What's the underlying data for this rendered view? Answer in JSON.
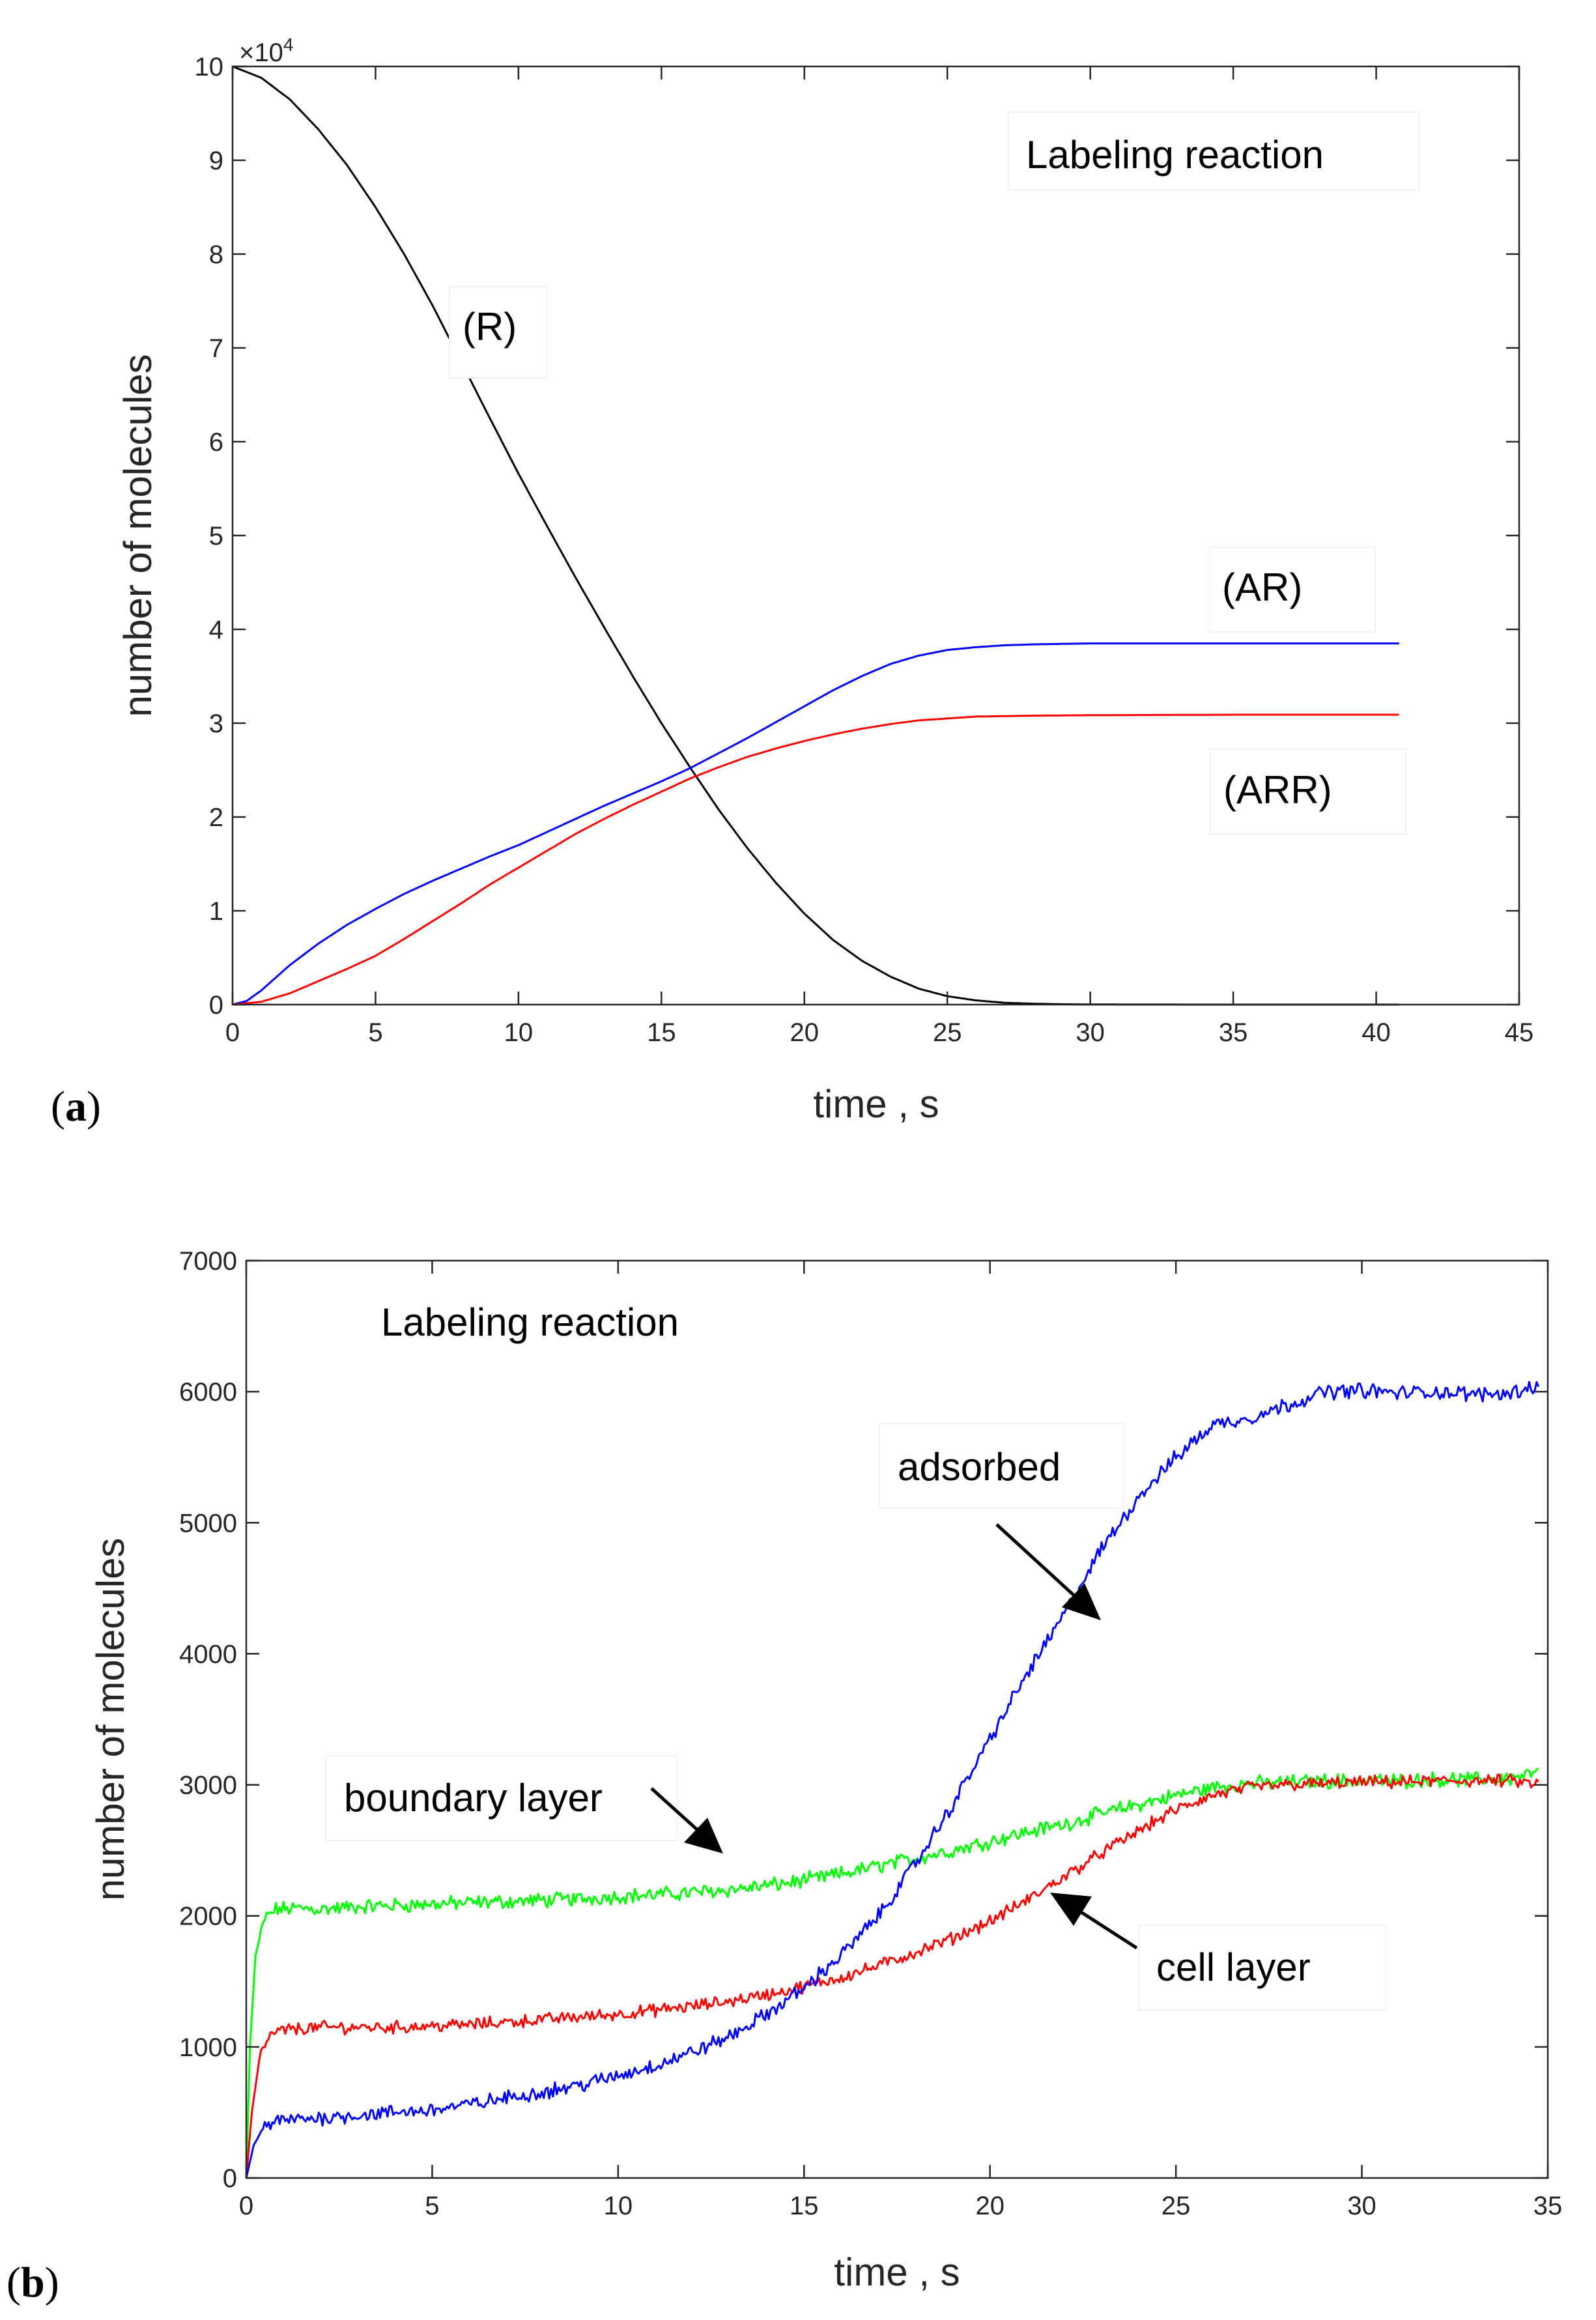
{
  "chart_data": [
    {
      "type": "line",
      "panel_label_open": "(",
      "panel_label_letter": "a",
      "panel_label_close": ")",
      "title": "Labeling reaction",
      "xlabel": "time , s",
      "ylabel": "number of molecules",
      "xlim": [
        0,
        45
      ],
      "ylim": [
        0,
        100000
      ],
      "xticks": [
        0,
        5,
        10,
        15,
        20,
        25,
        30,
        35,
        40,
        45
      ],
      "xtick_labels": [
        "0",
        "5",
        "10",
        "15",
        "20",
        "25",
        "30",
        "35",
        "40",
        "45"
      ],
      "yticks": [
        0,
        10000,
        20000,
        30000,
        40000,
        50000,
        60000,
        70000,
        80000,
        90000,
        100000
      ],
      "ytick_labels": [
        "0",
        "1",
        "2",
        "3",
        "4",
        "5",
        "6",
        "7",
        "8",
        "9",
        "10"
      ],
      "exponent_base": "×10",
      "exponent_power": "4",
      "grid": false,
      "series": [
        {
          "name": "(R)",
          "color": "#000000",
          "x": [
            0,
            1,
            2,
            3,
            4,
            5,
            6,
            7,
            8,
            9,
            10,
            11,
            12,
            13,
            14,
            15,
            16,
            17,
            18,
            19,
            20,
            21,
            22,
            23,
            24,
            25,
            26,
            27,
            28,
            29,
            30,
            32,
            34,
            36,
            38,
            40.8
          ],
          "y": [
            100000,
            98800,
            96500,
            93300,
            89500,
            85000,
            80000,
            74500,
            68500,
            62500,
            56600,
            51000,
            45500,
            40200,
            35000,
            30000,
            25300,
            20800,
            16700,
            13000,
            9700,
            6900,
            4700,
            3000,
            1700,
            900,
            450,
            200,
            100,
            40,
            15,
            5,
            2,
            1,
            0,
            0
          ]
        },
        {
          "name": "(AR)",
          "color": "#0000ff",
          "x": [
            0,
            0.5,
            1,
            2,
            3,
            4,
            5,
            6,
            7,
            8,
            9,
            10,
            11,
            12,
            13,
            14,
            15,
            16,
            17,
            18,
            19,
            20,
            21,
            22,
            23,
            24,
            25,
            26,
            27,
            28,
            29,
            30,
            32,
            35,
            38,
            40.8
          ],
          "y": [
            0,
            400,
            1500,
            4200,
            6500,
            8500,
            10200,
            11800,
            13200,
            14500,
            15800,
            17000,
            18400,
            19800,
            21200,
            22500,
            23800,
            25200,
            26800,
            28400,
            30100,
            31800,
            33500,
            35000,
            36300,
            37200,
            37800,
            38100,
            38300,
            38400,
            38450,
            38500,
            38500,
            38500,
            38500,
            38500
          ]
        },
        {
          "name": "(ARR)",
          "color": "#ff0000",
          "x": [
            0,
            1,
            2,
            3,
            4,
            5,
            6,
            7,
            8,
            9,
            10,
            11,
            12,
            13,
            14,
            15,
            16,
            17,
            18,
            19,
            20,
            21,
            22,
            23,
            24,
            25,
            26,
            28,
            30,
            35,
            40.8
          ],
          "y": [
            0,
            300,
            1200,
            2500,
            3800,
            5200,
            7000,
            8900,
            10800,
            12800,
            14600,
            16400,
            18200,
            19800,
            21300,
            22700,
            24100,
            25300,
            26400,
            27300,
            28100,
            28800,
            29400,
            29900,
            30300,
            30500,
            30700,
            30800,
            30850,
            30900,
            30900
          ]
        }
      ],
      "annotations": [
        "(R)",
        "(AR)",
        "(ARR)"
      ]
    },
    {
      "type": "line",
      "panel_label_open": "(",
      "panel_label_letter": "b",
      "panel_label_close": ")",
      "title": "Labeling reaction",
      "xlabel": "time , s",
      "ylabel": "number of molecules",
      "xlim": [
        0,
        35
      ],
      "ylim": [
        0,
        7000
      ],
      "xticks": [
        0,
        5,
        10,
        15,
        20,
        25,
        30,
        35
      ],
      "xtick_labels": [
        "0",
        "5",
        "10",
        "15",
        "20",
        "25",
        "30",
        "35"
      ],
      "yticks": [
        0,
        1000,
        2000,
        3000,
        4000,
        5000,
        6000,
        7000
      ],
      "ytick_labels": [
        "0",
        "1000",
        "2000",
        "3000",
        "4000",
        "5000",
        "6000",
        "7000"
      ],
      "grid": false,
      "series": [
        {
          "name": "boundary layer",
          "color": "#00ff00",
          "x": [
            0,
            0.1,
            0.25,
            0.5,
            0.8,
            1.5,
            2,
            3,
            4,
            5,
            6,
            7,
            8,
            9,
            10,
            11,
            12,
            13,
            14,
            15,
            16,
            17,
            18,
            19,
            20,
            21,
            22,
            23,
            24,
            25,
            26,
            27,
            28,
            29,
            30,
            31,
            32,
            33,
            34,
            34.8
          ],
          "y": [
            0,
            1000,
            1700,
            1980,
            2050,
            2060,
            2050,
            2070,
            2080,
            2090,
            2100,
            2110,
            2120,
            2130,
            2150,
            2160,
            2180,
            2200,
            2230,
            2270,
            2320,
            2380,
            2440,
            2500,
            2570,
            2640,
            2700,
            2780,
            2850,
            2920,
            2980,
            3010,
            3020,
            3030,
            3030,
            3030,
            3040,
            3040,
            3050,
            3100
          ]
        },
        {
          "name": "cell layer",
          "color": "#ff0000",
          "x": [
            0,
            0.15,
            0.35,
            0.6,
            1,
            2,
            3,
            4,
            5,
            6,
            7,
            8,
            9,
            10,
            11,
            12,
            13,
            14,
            15,
            16,
            17,
            18,
            19,
            20,
            21,
            22,
            23,
            24,
            25,
            26,
            27,
            28,
            29,
            30,
            31,
            32,
            33,
            34,
            34.8
          ],
          "y": [
            0,
            500,
            900,
            1080,
            1130,
            1150,
            1150,
            1150,
            1160,
            1170,
            1190,
            1210,
            1230,
            1250,
            1280,
            1310,
            1350,
            1400,
            1460,
            1530,
            1620,
            1720,
            1830,
            1960,
            2120,
            2300,
            2480,
            2650,
            2810,
            2920,
            2980,
            3000,
            3010,
            3020,
            3020,
            3030,
            3030,
            3030,
            3000
          ]
        },
        {
          "name": "adsorbed",
          "color": "#0000ff",
          "x": [
            0,
            0.2,
            0.5,
            1,
            2,
            3,
            4,
            5,
            6,
            7,
            8,
            9,
            10,
            11,
            12,
            13,
            14,
            15,
            16,
            17,
            18,
            19,
            20,
            21,
            22,
            23,
            24,
            25,
            26,
            27,
            28,
            29,
            30,
            31,
            32,
            33,
            34,
            34.8
          ],
          "y": [
            0,
            250,
            400,
            440,
            460,
            480,
            500,
            520,
            560,
            610,
            660,
            710,
            780,
            860,
            960,
            1080,
            1250,
            1450,
            1700,
            2000,
            2400,
            2850,
            3350,
            3850,
            4300,
            4800,
            5200,
            5500,
            5750,
            5800,
            5900,
            6000,
            6010,
            5990,
            6000,
            5980,
            5990,
            6060
          ]
        }
      ],
      "annotations": [
        "boundary layer",
        "cell layer",
        "adsorbed"
      ]
    }
  ]
}
